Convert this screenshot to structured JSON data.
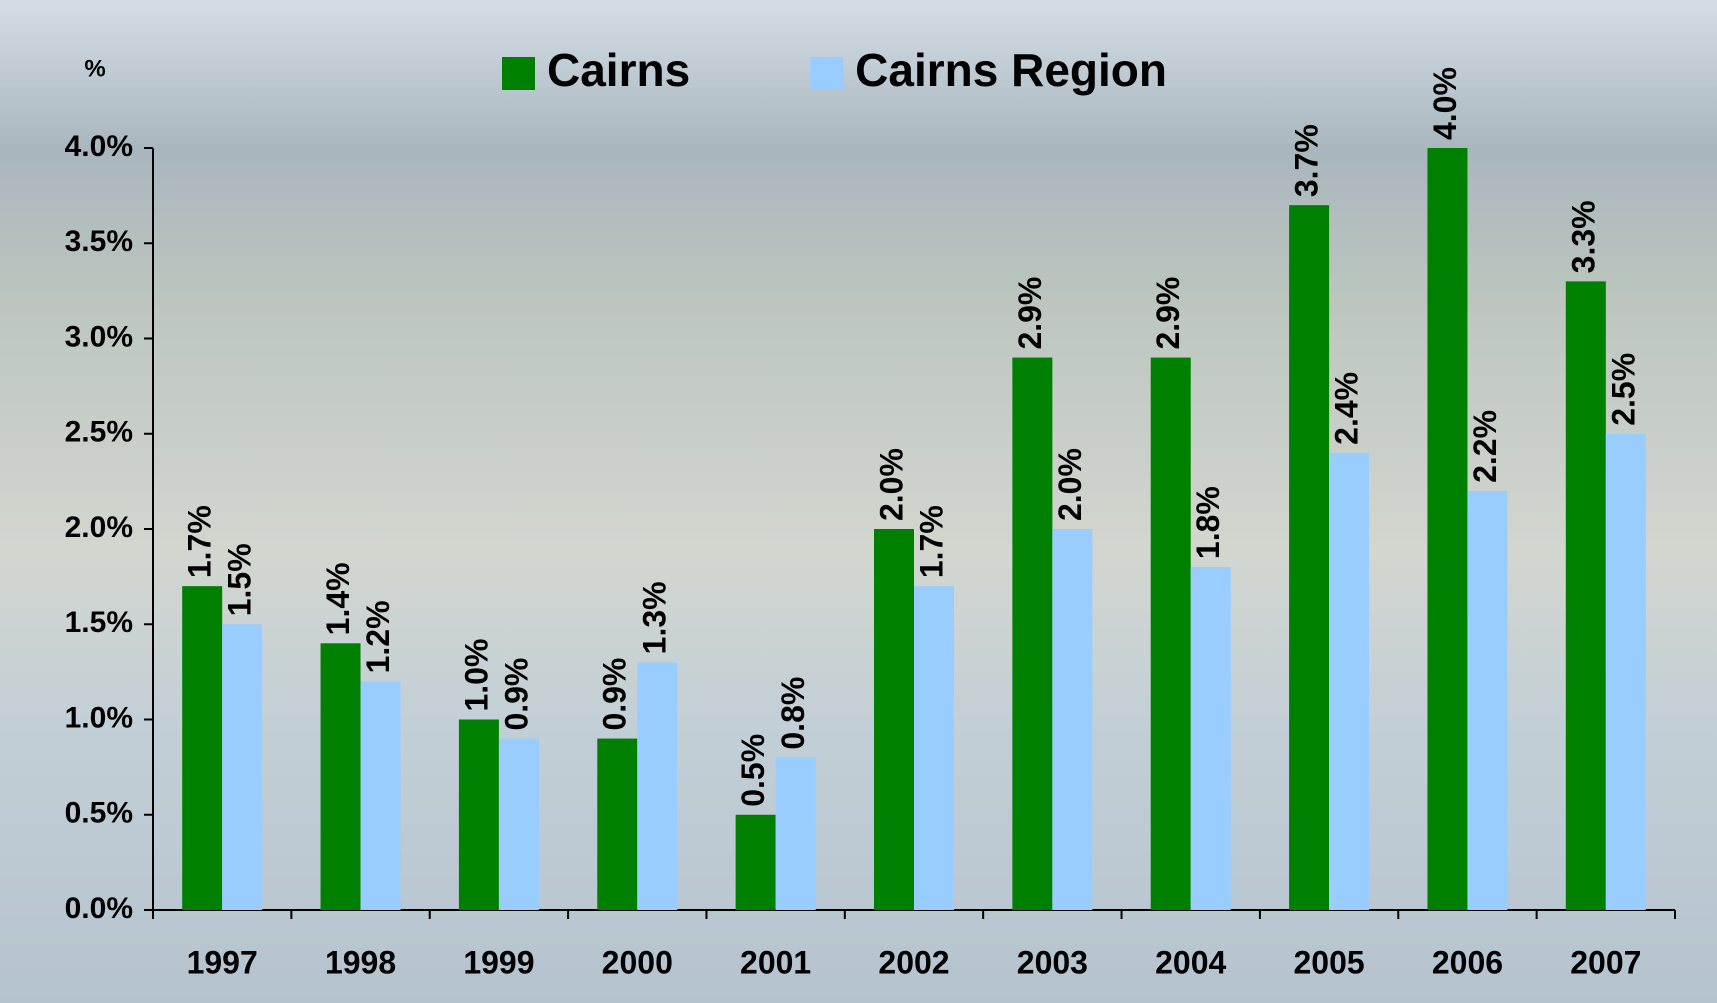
{
  "chart_data": {
    "type": "bar",
    "y_axis_label": "%",
    "categories": [
      "1997",
      "1998",
      "1999",
      "2000",
      "2001",
      "2002",
      "2003",
      "2004",
      "2005",
      "2006",
      "2007"
    ],
    "series": [
      {
        "name": "Cairns",
        "color": "#008000",
        "values": [
          1.7,
          1.4,
          1.0,
          0.9,
          0.5,
          2.0,
          2.9,
          2.9,
          3.7,
          4.0,
          3.3
        ],
        "value_labels": [
          "1.7%",
          "1.4%",
          "1.0%",
          "0.9%",
          "0.5%",
          "2.0%",
          "2.9%",
          "2.9%",
          "3.7%",
          "4.0%",
          "3.3%"
        ]
      },
      {
        "name": "Cairns Region",
        "color": "#99ccff",
        "values": [
          1.5,
          1.2,
          0.9,
          1.3,
          0.8,
          1.7,
          2.0,
          1.8,
          2.4,
          2.2,
          2.5
        ],
        "value_labels": [
          "1.5%",
          "1.2%",
          "0.9%",
          "1.3%",
          "0.8%",
          "1.7%",
          "2.0%",
          "1.8%",
          "2.4%",
          "2.2%",
          "2.5%"
        ]
      }
    ],
    "ylim": [
      0,
      4
    ],
    "yticks": [
      {
        "value": 0,
        "label": "0.0%"
      },
      {
        "value": 0.5,
        "label": "0.5%"
      },
      {
        "value": 1,
        "label": "1.0%"
      },
      {
        "value": 1.5,
        "label": "1.5%"
      },
      {
        "value": 2,
        "label": "2.0%"
      },
      {
        "value": 2.5,
        "label": "2.5%"
      },
      {
        "value": 3,
        "label": "3.0%"
      },
      {
        "value": 3.5,
        "label": "3.5%"
      },
      {
        "value": 4,
        "label": "4.0%"
      }
    ],
    "grid": false,
    "legend": "top"
  }
}
